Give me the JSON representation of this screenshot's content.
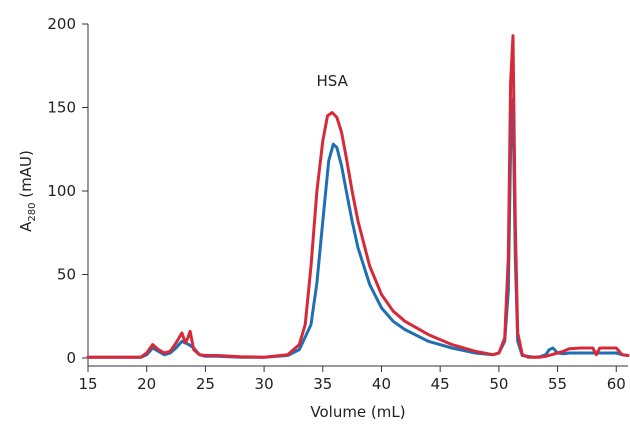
{
  "chart_data": {
    "type": "line",
    "title": "",
    "xlabel": "Volume (mL)",
    "ylabel_main": "A",
    "ylabel_sub": "280",
    "ylabel_unit": " (mAU)",
    "xlim": [
      15,
      61
    ],
    "ylim": [
      0,
      200
    ],
    "xticks": [
      15,
      20,
      25,
      30,
      35,
      40,
      45,
      50,
      55,
      60
    ],
    "yticks": [
      0,
      50,
      100,
      150,
      200
    ],
    "grid": false,
    "legend": "none",
    "annotations": [
      {
        "text": "HSA",
        "x": 35.8,
        "y": 163
      }
    ],
    "series": [
      {
        "color": "#1f6fb5",
        "x": [
          15,
          19.5,
          20,
          20.5,
          21,
          21.5,
          22,
          22.5,
          23,
          23.3,
          23.6,
          24,
          24.5,
          25,
          26,
          28,
          30,
          32,
          33,
          34,
          34.5,
          35,
          35.5,
          35.9,
          36.2,
          36.6,
          37,
          37.5,
          38,
          39,
          40,
          41,
          42,
          44,
          46,
          48,
          49.5,
          50,
          50.5,
          50.8,
          51.0,
          51.2,
          51.4,
          51.6,
          52,
          52.5,
          53,
          53.5,
          54,
          54.3,
          54.6,
          55,
          55.5,
          56,
          57,
          58,
          58.5,
          59,
          60,
          60.5,
          61
        ],
        "y": [
          0.5,
          0.5,
          2,
          6,
          4,
          2,
          3,
          6,
          10,
          9,
          8,
          6,
          2,
          1,
          1,
          0.5,
          0.5,
          1.5,
          5,
          20,
          45,
          82,
          118,
          128,
          126,
          115,
          100,
          82,
          66,
          44,
          30,
          22,
          17,
          10,
          6,
          3,
          2,
          3,
          10,
          40,
          125,
          155,
          60,
          10,
          1.5,
          1,
          0.5,
          0.8,
          2,
          5,
          6,
          3,
          2.5,
          3,
          3,
          3,
          3,
          3,
          3,
          2,
          1.5
        ]
      },
      {
        "color": "#d62a3a",
        "x": [
          15,
          19.5,
          20,
          20.5,
          21,
          21.5,
          22,
          22.5,
          23,
          23.3,
          23.5,
          23.7,
          24,
          24.5,
          25,
          26,
          28,
          30,
          32,
          33,
          33.5,
          34,
          34.5,
          35,
          35.4,
          35.8,
          36.2,
          36.6,
          37,
          37.5,
          38,
          39,
          40,
          41,
          42,
          44,
          46,
          48,
          49.5,
          50,
          50.5,
          50.8,
          51.0,
          51.2,
          51.4,
          51.6,
          52,
          52.5,
          53,
          53.5,
          54,
          54.5,
          55,
          55.5,
          56,
          57,
          58,
          58.3,
          58.6,
          59,
          59.5,
          60,
          60.5,
          61
        ],
        "y": [
          0.5,
          0.5,
          3,
          8,
          5,
          3,
          4,
          9,
          15,
          9,
          12,
          16,
          5,
          2,
          1.5,
          1.5,
          0.8,
          0.5,
          2,
          8,
          20,
          55,
          100,
          130,
          145,
          147,
          144,
          135,
          120,
          100,
          82,
          55,
          38,
          28,
          22,
          14,
          8,
          4,
          2,
          3,
          12,
          60,
          165,
          193,
          80,
          15,
          2,
          0.5,
          0.5,
          0.5,
          1,
          2,
          3,
          4,
          5.5,
          6,
          6,
          2,
          6,
          6,
          6,
          6,
          2,
          1.5
        ]
      }
    ]
  }
}
